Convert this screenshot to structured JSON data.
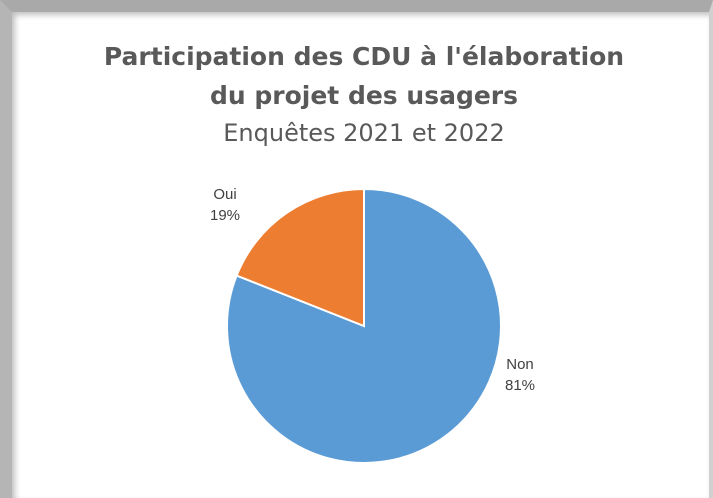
{
  "chart_data": {
    "type": "pie",
    "title": [
      "Participation des CDU à l'élaboration",
      "du projet des usagers"
    ],
    "subtitle": "Enquêtes 2021 et 2022",
    "categories": [
      "Non",
      "Oui"
    ],
    "values": [
      81,
      19
    ],
    "value_labels": [
      "81%",
      "19%"
    ],
    "colors": [
      "#5b9bd5",
      "#ed7d31"
    ]
  }
}
